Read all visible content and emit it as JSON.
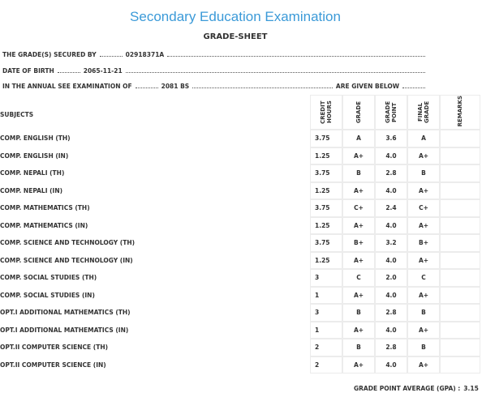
{
  "header": {
    "title": "Secondary Education Examination",
    "subtitle": "GRADE-SHEET"
  },
  "info": [
    {
      "label": "THE GRADE(S) SECURED BY",
      "value": "02918371A"
    },
    {
      "label": "DATE OF BIRTH",
      "value": "2065-11-21"
    },
    {
      "label": "IN THE ANNUAL SEE EXAMINATION OF",
      "value": "2081 BS",
      "tail": "ARE GIVEN BELOW"
    }
  ],
  "table": {
    "columns": [
      "SUBJECTS",
      "CREDIT HOURS",
      "GRADE",
      "GRADE POINT",
      "FINAL GRADE",
      "REMARKS"
    ],
    "rows": [
      [
        "COMP. ENGLISH (TH)",
        "3.75",
        "A",
        "3.6",
        "A"
      ],
      [
        "COMP. ENGLISH (IN)",
        "1.25",
        "A+",
        "4.0",
        "A+"
      ],
      [
        "COMP. NEPALI (TH)",
        "3.75",
        "B",
        "2.8",
        "B"
      ],
      [
        "COMP. NEPALI (IN)",
        "1.25",
        "A+",
        "4.0",
        "A+"
      ],
      [
        "COMP. MATHEMATICS (TH)",
        "3.75",
        "C+",
        "2.4",
        "C+"
      ],
      [
        "COMP. MATHEMATICS (IN)",
        "1.25",
        "A+",
        "4.0",
        "A+"
      ],
      [
        "COMP. SCIENCE AND TECHNOLOGY (TH)",
        "3.75",
        "B+",
        "3.2",
        "B+"
      ],
      [
        "COMP. SCIENCE AND TECHNOLOGY (IN)",
        "1.25",
        "A+",
        "4.0",
        "A+"
      ],
      [
        "COMP. SOCIAL STUDIES (TH)",
        "3",
        "C",
        "2.0",
        "C"
      ],
      [
        "COMP. SOCIAL STUDIES (IN)",
        "1",
        "A+",
        "4.0",
        "A+"
      ],
      [
        "OPT.I ADDITIONAL MATHEMATICS (TH)",
        "3",
        "B",
        "2.8",
        "B"
      ],
      [
        "OPT.I ADDITIONAL MATHEMATICS (IN)",
        "1",
        "A+",
        "4.0",
        "A+"
      ],
      [
        "OPT.II COMPUTER SCIENCE (TH)",
        "2",
        "B",
        "2.8",
        "B"
      ],
      [
        "OPT.II COMPUTER SCIENCE (IN)",
        "2",
        "A+",
        "4.0",
        "A+"
      ]
    ]
  },
  "footer": {
    "label": "GRADE POINT AVERAGE (GPA) :",
    "value": "3.15"
  }
}
